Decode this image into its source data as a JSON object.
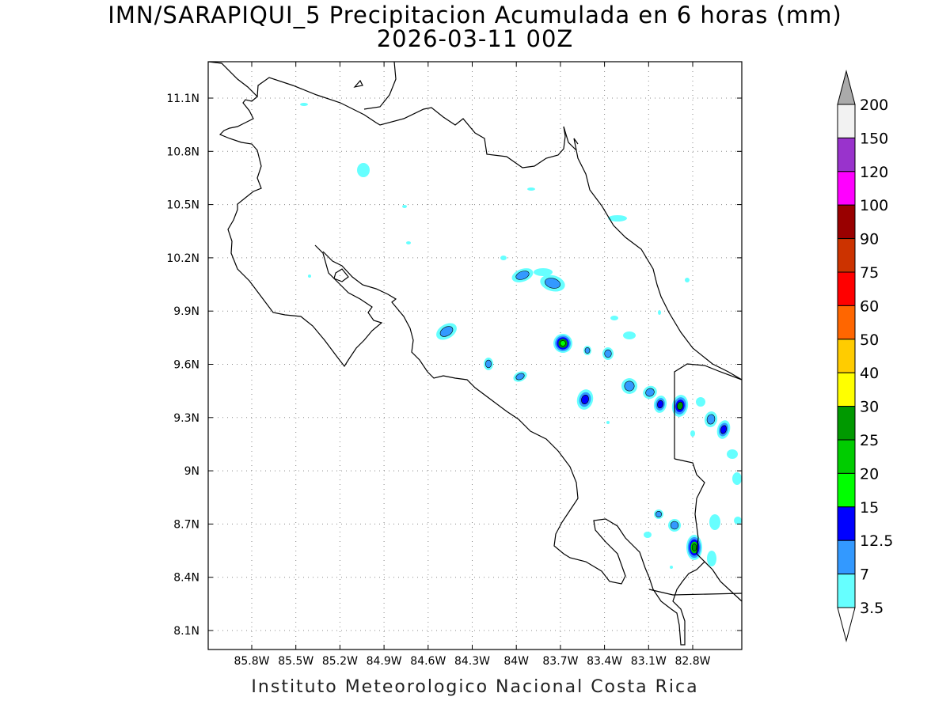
{
  "header": {
    "title": "IMN/SARAPIQUI_5 Precipitacion Acumulada en 6 horas (mm)",
    "subtitle": "2026-03-11 00Z"
  },
  "footer": {
    "credit": "Instituto Meteorologico Nacional Costa Rica"
  },
  "map": {
    "lat_ticks": [
      "11.1N",
      "10.8N",
      "10.5N",
      "10.2N",
      "9.9N",
      "9.6N",
      "9.3N",
      "9N",
      "8.7N",
      "8.4N",
      "8.1N"
    ],
    "lon_ticks": [
      "85.8W",
      "85.5W",
      "85.2W",
      "84.9W",
      "84.6W",
      "84.3W",
      "84W",
      "83.7W",
      "83.4W",
      "83.1W",
      "82.8W"
    ],
    "lat_values": [
      11.1,
      10.8,
      10.5,
      10.2,
      9.9,
      9.6,
      9.3,
      9.0,
      8.7,
      8.4,
      8.1
    ],
    "lon_values": [
      -85.8,
      -85.5,
      -85.2,
      -84.9,
      -84.6,
      -84.3,
      -84.0,
      -83.7,
      -83.4,
      -83.1,
      -82.8
    ],
    "grid": true
  },
  "legend": {
    "labels": [
      "200",
      "150",
      "120",
      "100",
      "90",
      "75",
      "60",
      "50",
      "40",
      "30",
      "25",
      "20",
      "15",
      "12.5",
      "7",
      "3.5"
    ],
    "colors": [
      "#f2f2f2",
      "#9933cc",
      "#ff00ff",
      "#990000",
      "#cc3300",
      "#ff0000",
      "#ff6600",
      "#ffcc00",
      "#ffff00",
      "#009900",
      "#00cc00",
      "#00ff00",
      "#0000ff",
      "#3399ff",
      "#66ffff"
    ],
    "over_color": "#aaaaaa",
    "under_color": "#ffffff"
  },
  "colors": {
    "light": "#66ffff",
    "mid": "#3399ff",
    "dark": "#0000ff",
    "green": "#00cc00",
    "green_dark": "#009900",
    "lime": "#00ff00"
  }
}
